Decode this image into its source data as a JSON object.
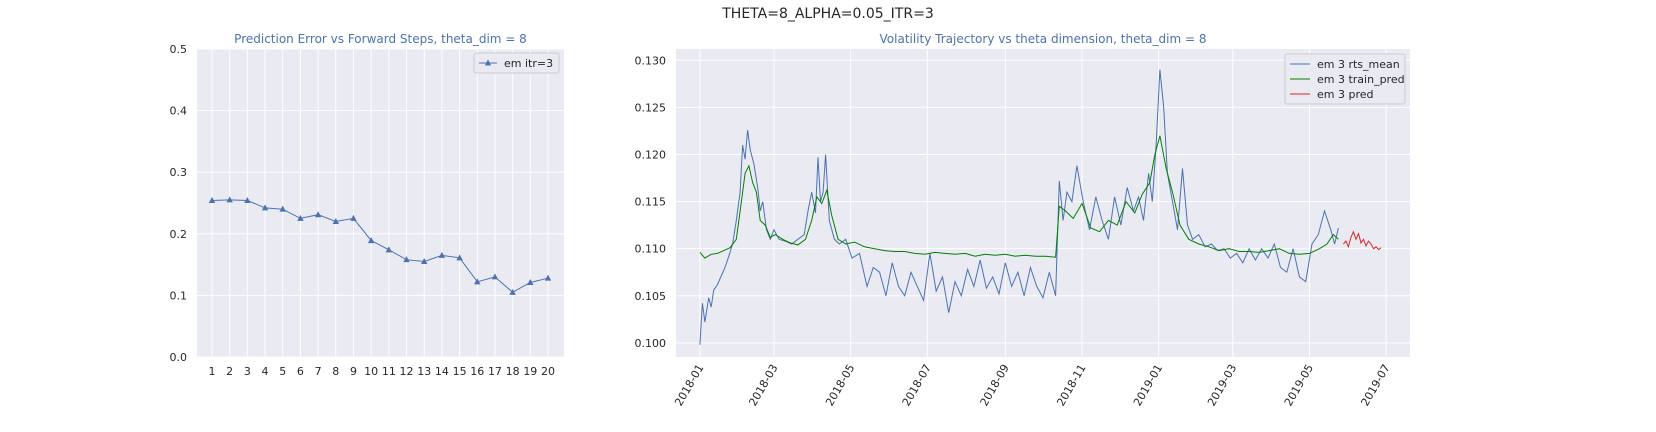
{
  "suptitle": "THETA=8_ALPHA=0.05_ITR=3",
  "chart_data": [
    {
      "type": "line",
      "title": "Prediction Error vs Forward Steps, theta_dim = 8",
      "xlabel": "",
      "ylabel": "",
      "x": [
        1,
        2,
        3,
        4,
        5,
        6,
        7,
        8,
        9,
        10,
        11,
        12,
        13,
        14,
        15,
        16,
        17,
        18,
        19,
        20
      ],
      "xticks": [
        "1",
        "2",
        "3",
        "4",
        "5",
        "6",
        "7",
        "8",
        "9",
        "10",
        "11",
        "12",
        "13",
        "14",
        "15",
        "16",
        "17",
        "18",
        "19",
        "20"
      ],
      "ylim": [
        0,
        0.5
      ],
      "yticks": [
        "0.0",
        "0.1",
        "0.2",
        "0.3",
        "0.4",
        "0.5"
      ],
      "grid": true,
      "legend": "top-right",
      "series": [
        {
          "name": "em itr=3",
          "color": "#4c72b0",
          "marker": "triangle",
          "values": [
            0.254,
            0.255,
            0.254,
            0.242,
            0.24,
            0.225,
            0.231,
            0.22,
            0.225,
            0.189,
            0.174,
            0.158,
            0.155,
            0.165,
            0.161,
            0.122,
            0.13,
            0.105,
            0.121,
            0.128
          ]
        }
      ]
    },
    {
      "type": "line",
      "title": "Volatility Trajectory vs theta dimension, theta_dim = 8",
      "xlabel": "",
      "ylabel": "",
      "xlim": [
        "2017-12-13",
        "2019-07-20"
      ],
      "xticks": [
        "2018-01",
        "2018-03",
        "2018-05",
        "2018-07",
        "2018-09",
        "2018-11",
        "2019-01",
        "2019-03",
        "2019-05",
        "2019-07"
      ],
      "ylim": [
        0.0985,
        0.1312
      ],
      "yticks": [
        "0.100",
        "0.105",
        "0.110",
        "0.115",
        "0.120",
        "0.125",
        "0.130"
      ],
      "grid": true,
      "legend": "top-right",
      "series": [
        {
          "name": "em 3 rts_mean",
          "color": "#4c72b0",
          "x": [
            "2018-01-01",
            "2018-01-03",
            "2018-01-05",
            "2018-01-08",
            "2018-01-10",
            "2018-01-12",
            "2018-01-15",
            "2018-01-18",
            "2018-01-21",
            "2018-01-24",
            "2018-01-27",
            "2018-01-30",
            "2018-02-02",
            "2018-02-04",
            "2018-02-06",
            "2018-02-08",
            "2018-02-10",
            "2018-02-13",
            "2018-02-16",
            "2018-02-18",
            "2018-02-20",
            "2018-02-23",
            "2018-02-26",
            "2018-03-01",
            "2018-03-05",
            "2018-03-10",
            "2018-03-15",
            "2018-03-20",
            "2018-03-25",
            "2018-03-28",
            "2018-03-31",
            "2018-04-03",
            "2018-04-05",
            "2018-04-07",
            "2018-04-09",
            "2018-04-11",
            "2018-04-14",
            "2018-04-18",
            "2018-04-22",
            "2018-04-27",
            "2018-05-02",
            "2018-05-08",
            "2018-05-14",
            "2018-05-19",
            "2018-05-24",
            "2018-05-29",
            "2018-06-03",
            "2018-06-08",
            "2018-06-13",
            "2018-06-18",
            "2018-06-23",
            "2018-06-28",
            "2018-07-03",
            "2018-07-08",
            "2018-07-13",
            "2018-07-18",
            "2018-07-23",
            "2018-07-28",
            "2018-08-02",
            "2018-08-07",
            "2018-08-12",
            "2018-08-17",
            "2018-08-22",
            "2018-08-27",
            "2018-09-01",
            "2018-09-06",
            "2018-09-11",
            "2018-09-16",
            "2018-09-21",
            "2018-09-26",
            "2018-10-01",
            "2018-10-06",
            "2018-10-11",
            "2018-10-14",
            "2018-10-17",
            "2018-10-20",
            "2018-10-24",
            "2018-10-28",
            "2018-11-02",
            "2018-11-07",
            "2018-11-12",
            "2018-11-17",
            "2018-11-22",
            "2018-11-27",
            "2018-12-02",
            "2018-12-07",
            "2018-12-12",
            "2018-12-16",
            "2018-12-20",
            "2018-12-24",
            "2018-12-27",
            "2018-12-30",
            "2019-01-02",
            "2019-01-05",
            "2019-01-08",
            "2019-01-12",
            "2019-01-16",
            "2019-01-20",
            "2019-01-24",
            "2019-01-28",
            "2019-02-02",
            "2019-02-07",
            "2019-02-12",
            "2019-02-17",
            "2019-02-22",
            "2019-02-27",
            "2019-03-04",
            "2019-03-09",
            "2019-03-14",
            "2019-03-19",
            "2019-03-24",
            "2019-03-29",
            "2019-04-03",
            "2019-04-08",
            "2019-04-13",
            "2019-04-18",
            "2019-04-23",
            "2019-04-28",
            "2019-05-03",
            "2019-05-08",
            "2019-05-13",
            "2019-05-18",
            "2019-05-21",
            "2019-05-24"
          ],
          "values": [
            0.0998,
            0.1042,
            0.1022,
            0.1048,
            0.1038,
            0.1056,
            0.1062,
            0.1071,
            0.108,
            0.1092,
            0.1105,
            0.113,
            0.116,
            0.121,
            0.1195,
            0.1226,
            0.1205,
            0.119,
            0.1165,
            0.114,
            0.115,
            0.112,
            0.111,
            0.112,
            0.111,
            0.1108,
            0.1105,
            0.111,
            0.1115,
            0.114,
            0.116,
            0.1138,
            0.1197,
            0.115,
            0.116,
            0.12,
            0.113,
            0.111,
            0.1105,
            0.111,
            0.109,
            0.1095,
            0.106,
            0.108,
            0.1075,
            0.105,
            0.1085,
            0.106,
            0.105,
            0.1075,
            0.106,
            0.1045,
            0.1095,
            0.1055,
            0.107,
            0.1032,
            0.1065,
            0.105,
            0.1078,
            0.106,
            0.1088,
            0.1058,
            0.107,
            0.1052,
            0.1085,
            0.106,
            0.1075,
            0.105,
            0.108,
            0.106,
            0.1048,
            0.1075,
            0.105,
            0.1172,
            0.113,
            0.116,
            0.115,
            0.1188,
            0.115,
            0.112,
            0.1155,
            0.113,
            0.111,
            0.1155,
            0.1125,
            0.1165,
            0.114,
            0.1155,
            0.113,
            0.118,
            0.115,
            0.121,
            0.129,
            0.125,
            0.118,
            0.115,
            0.112,
            0.1185,
            0.1125,
            0.111,
            0.1115,
            0.1102,
            0.1105,
            0.1098,
            0.11,
            0.109,
            0.1095,
            0.1085,
            0.11,
            0.1088,
            0.11,
            0.109,
            0.1105,
            0.108,
            0.1075,
            0.11,
            0.107,
            0.1065,
            0.1105,
            0.1115,
            0.114,
            0.112,
            0.1105,
            0.1122
          ]
        },
        {
          "name": "em 3 train_pred",
          "color": "#008000",
          "x": [
            "2018-01-01",
            "2018-01-05",
            "2018-01-10",
            "2018-01-15",
            "2018-01-20",
            "2018-01-25",
            "2018-01-30",
            "2018-02-03",
            "2018-02-06",
            "2018-02-09",
            "2018-02-12",
            "2018-02-15",
            "2018-02-18",
            "2018-02-22",
            "2018-02-26",
            "2018-03-02",
            "2018-03-08",
            "2018-03-14",
            "2018-03-20",
            "2018-03-26",
            "2018-03-31",
            "2018-04-04",
            "2018-04-08",
            "2018-04-12",
            "2018-04-16",
            "2018-04-21",
            "2018-04-27",
            "2018-05-04",
            "2018-05-12",
            "2018-05-20",
            "2018-05-28",
            "2018-06-05",
            "2018-06-13",
            "2018-06-21",
            "2018-06-29",
            "2018-07-07",
            "2018-07-15",
            "2018-07-23",
            "2018-07-31",
            "2018-08-08",
            "2018-08-16",
            "2018-08-24",
            "2018-09-01",
            "2018-09-09",
            "2018-09-17",
            "2018-09-25",
            "2018-10-03",
            "2018-10-11",
            "2018-10-14",
            "2018-10-19",
            "2018-10-25",
            "2018-11-01",
            "2018-11-08",
            "2018-11-15",
            "2018-11-22",
            "2018-11-29",
            "2018-12-06",
            "2018-12-13",
            "2018-12-19",
            "2018-12-25",
            "2018-12-29",
            "2019-01-02",
            "2019-01-07",
            "2019-01-12",
            "2019-01-18",
            "2019-01-25",
            "2019-02-02",
            "2019-02-10",
            "2019-02-18",
            "2019-02-26",
            "2019-03-06",
            "2019-03-14",
            "2019-03-22",
            "2019-03-30",
            "2019-04-07",
            "2019-04-15",
            "2019-04-23",
            "2019-05-01",
            "2019-05-09",
            "2019-05-15",
            "2019-05-20",
            "2019-05-24"
          ],
          "values": [
            0.1096,
            0.109,
            0.1094,
            0.1095,
            0.1098,
            0.1101,
            0.111,
            0.115,
            0.118,
            0.1188,
            0.117,
            0.116,
            0.113,
            0.1125,
            0.1112,
            0.1115,
            0.111,
            0.1106,
            0.1104,
            0.111,
            0.113,
            0.1155,
            0.1148,
            0.1162,
            0.1135,
            0.111,
            0.1105,
            0.1107,
            0.1102,
            0.11,
            0.1098,
            0.1097,
            0.1097,
            0.1095,
            0.1094,
            0.1096,
            0.1095,
            0.1094,
            0.1095,
            0.1092,
            0.1094,
            0.1093,
            0.1094,
            0.1092,
            0.1093,
            0.1092,
            0.1092,
            0.1091,
            0.1145,
            0.114,
            0.1132,
            0.1148,
            0.1122,
            0.1118,
            0.113,
            0.1125,
            0.115,
            0.1138,
            0.1158,
            0.117,
            0.12,
            0.122,
            0.1185,
            0.116,
            0.1125,
            0.111,
            0.1105,
            0.1102,
            0.1098,
            0.11,
            0.1097,
            0.1097,
            0.1096,
            0.1098,
            0.11,
            0.1095,
            0.1094,
            0.1095,
            0.11,
            0.1105,
            0.1115,
            0.111
          ]
        },
        {
          "name": "em 3 pred",
          "color": "#d62728",
          "x": [
            "2019-05-28",
            "2019-05-30",
            "2019-06-01",
            "2019-06-03",
            "2019-06-05",
            "2019-06-07",
            "2019-06-09",
            "2019-06-11",
            "2019-06-13",
            "2019-06-15",
            "2019-06-17",
            "2019-06-19",
            "2019-06-21",
            "2019-06-23",
            "2019-06-25",
            "2019-06-27"
          ],
          "values": [
            0.1105,
            0.1108,
            0.1102,
            0.1112,
            0.1118,
            0.111,
            0.1116,
            0.1106,
            0.111,
            0.1103,
            0.1108,
            0.1105,
            0.11,
            0.1102,
            0.1099,
            0.1101
          ]
        }
      ]
    }
  ]
}
